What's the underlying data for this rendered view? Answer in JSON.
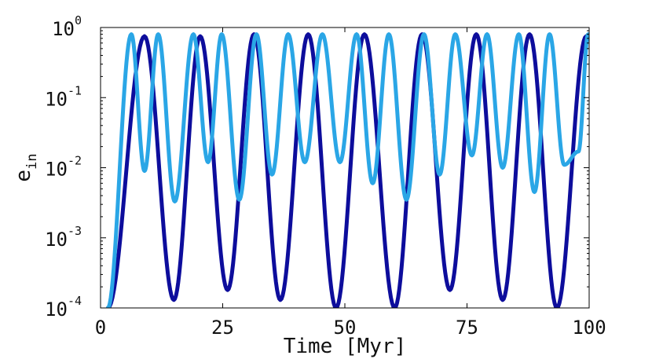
{
  "chart_data": {
    "type": "line",
    "title": "",
    "xlabel": "Time [Myr]",
    "ylabel": {
      "base": "e",
      "subscript": "in"
    },
    "xlim": [
      0,
      100
    ],
    "ylim": [
      0.0001,
      1
    ],
    "yscale": "log",
    "grid": false,
    "x_ticks": [
      "0",
      "25",
      "50",
      "75",
      "100"
    ],
    "y_ticks": [
      {
        "base": "10",
        "exp": "0"
      },
      {
        "base": "10",
        "exp": "-1"
      },
      {
        "base": "10",
        "exp": "-2"
      },
      {
        "base": "10",
        "exp": "-3"
      },
      {
        "base": "10",
        "exp": "-4"
      }
    ],
    "series": [
      {
        "color": "#0d0d9c",
        "x": [
          1.5,
          9.0,
          15.0,
          20.4,
          26.0,
          31.4,
          36.8,
          42.5,
          48.2,
          54.0,
          60.2,
          65.8,
          71.5,
          76.9,
          82.3,
          87.8,
          93.4,
          99.4
        ],
        "y": [
          0.0001,
          0.75,
          0.00013,
          0.75,
          0.00018,
          0.8,
          0.00013,
          0.8,
          0.0001,
          0.8,
          0.0001,
          0.8,
          0.00018,
          0.8,
          0.00013,
          0.8,
          0.0001,
          0.75
        ]
      },
      {
        "color": "#2aa6e6",
        "x": [
          1.5,
          6.3,
          9.0,
          11.8,
          15.2,
          19.0,
          22.0,
          24.8,
          28.4,
          31.9,
          35.1,
          38.4,
          41.8,
          45.4,
          49.0,
          52.4,
          55.7,
          59.0,
          62.6,
          66.2,
          69.4,
          72.6,
          76.0,
          79.1,
          82.3,
          85.6,
          88.8,
          91.9,
          94.9,
          97.8,
          99.8
        ],
        "y": [
          0.0001,
          0.8,
          0.009,
          0.8,
          0.0033,
          0.8,
          0.012,
          0.8,
          0.0035,
          0.8,
          0.008,
          0.8,
          0.012,
          0.8,
          0.012,
          0.8,
          0.006,
          0.8,
          0.0035,
          0.8,
          0.008,
          0.8,
          0.015,
          0.8,
          0.01,
          0.8,
          0.0045,
          0.8,
          0.011,
          0.017,
          0.8
        ]
      }
    ]
  }
}
